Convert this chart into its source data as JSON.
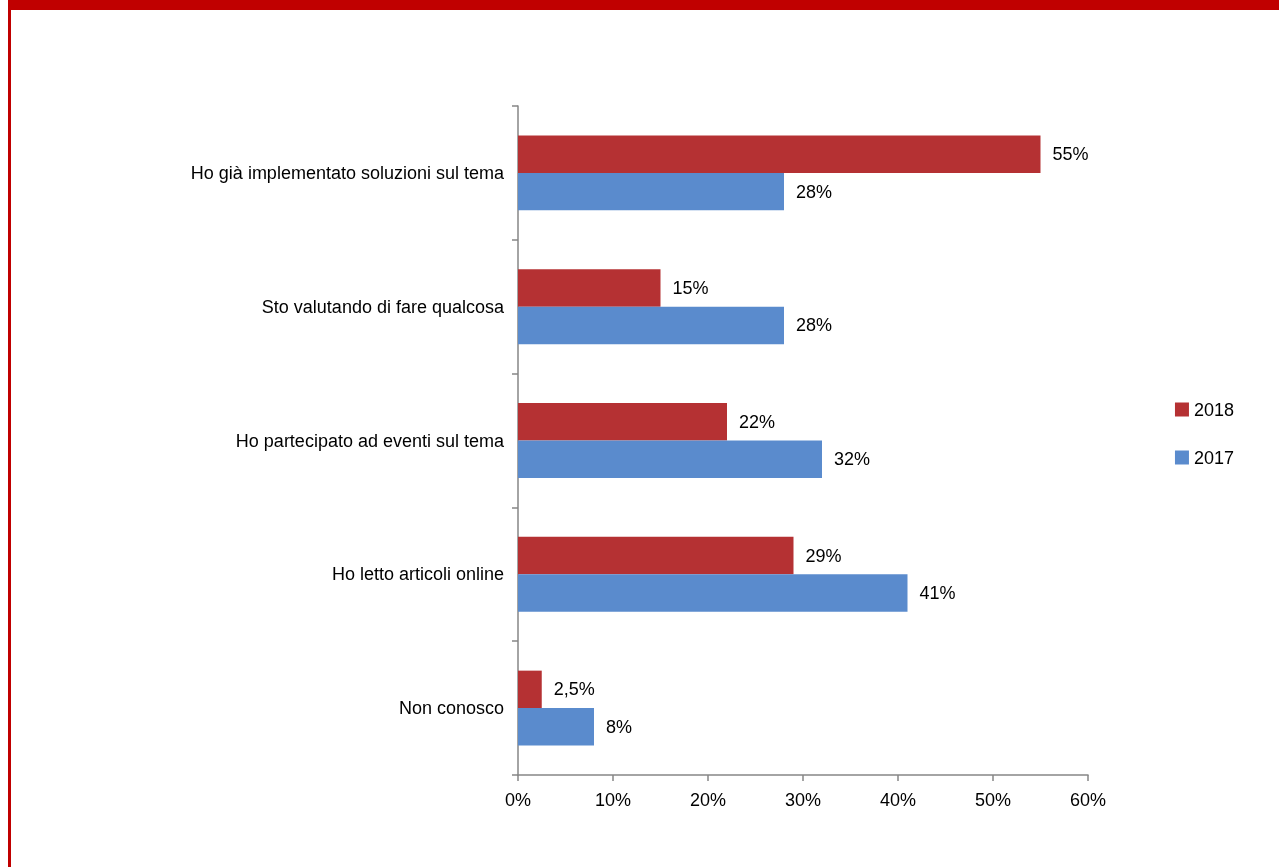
{
  "chart_data": {
    "type": "bar",
    "orientation": "horizontal",
    "categories": [
      "Ho già implementato soluzioni sul tema",
      "Sto valutando di fare qualcosa",
      "Ho partecipato ad eventi sul tema",
      "Ho letto articoli online",
      "Non conosco"
    ],
    "series": [
      {
        "name": "2018",
        "color": "#b53133",
        "values": [
          55,
          15,
          22,
          29,
          2.5
        ],
        "value_labels": [
          "55%",
          "15%",
          "22%",
          "29%",
          "2,5%"
        ]
      },
      {
        "name": "2017",
        "color": "#5a8bcd",
        "values": [
          28,
          28,
          32,
          41,
          8
        ],
        "value_labels": [
          "28%",
          "28%",
          "32%",
          "41%",
          "8%"
        ]
      }
    ],
    "xlim": [
      0,
      60
    ],
    "xticks": [
      {
        "value": 0,
        "label": "0%"
      },
      {
        "value": 10,
        "label": "10%"
      },
      {
        "value": 20,
        "label": "20%"
      },
      {
        "value": 30,
        "label": "30%"
      },
      {
        "value": 40,
        "label": "40%"
      },
      {
        "value": 50,
        "label": "50%"
      },
      {
        "value": 60,
        "label": "60%"
      }
    ],
    "grid": false,
    "legend": "right"
  }
}
